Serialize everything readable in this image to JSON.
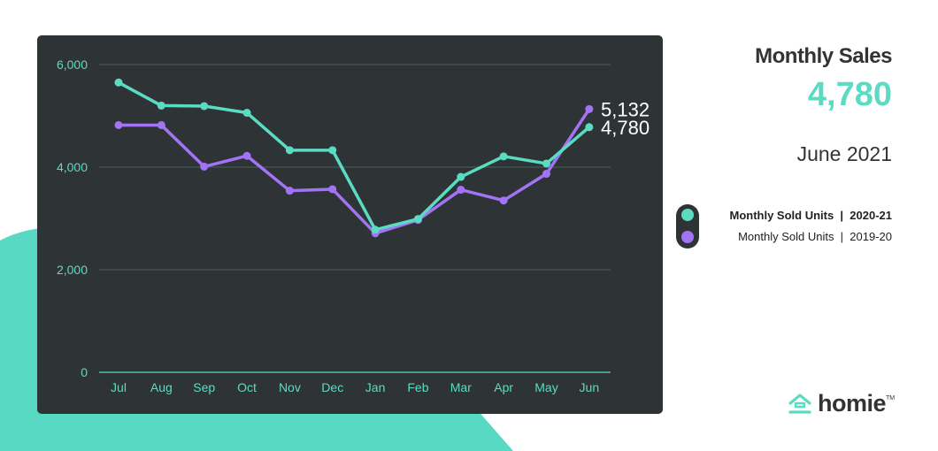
{
  "colors": {
    "current": "#5cdbc3",
    "previous": "#a274f5",
    "panel": "#2e3436",
    "blob": "#58d9c3"
  },
  "sidebar": {
    "title": "Monthly Sales",
    "value": "4,780",
    "date": "June 2021"
  },
  "legend": {
    "items": [
      {
        "label": "Monthly Sold Units  |  2020-21"
      },
      {
        "label": "Monthly Sold Units  |  2019-20"
      }
    ]
  },
  "logo": {
    "text": "homie",
    "tm": "TM",
    "icon": "house-icon"
  },
  "chart_data": {
    "type": "line",
    "categories": [
      "Jul",
      "Aug",
      "Sep",
      "Oct",
      "Nov",
      "Dec",
      "Jan",
      "Feb",
      "Mar",
      "Apr",
      "May",
      "Jun"
    ],
    "ylim": [
      0,
      6000
    ],
    "yticks": [
      0,
      2000,
      4000,
      6000
    ],
    "ytick_labels": [
      "0",
      "2,000",
      "4,000",
      "6,000"
    ],
    "grid": true,
    "series": [
      {
        "name": "Monthly Sold Units | 2020-21",
        "color": "#5cdbc3",
        "values": [
          5650,
          5200,
          5190,
          5060,
          4330,
          4330,
          2780,
          2990,
          3810,
          4210,
          4070,
          4780
        ],
        "end_label": "4,780"
      },
      {
        "name": "Monthly Sold Units | 2019-20",
        "color": "#a274f5",
        "values": [
          4820,
          4820,
          4010,
          4220,
          3540,
          3570,
          2710,
          2970,
          3560,
          3350,
          3870,
          5132
        ],
        "end_label": "5,132"
      }
    ]
  }
}
